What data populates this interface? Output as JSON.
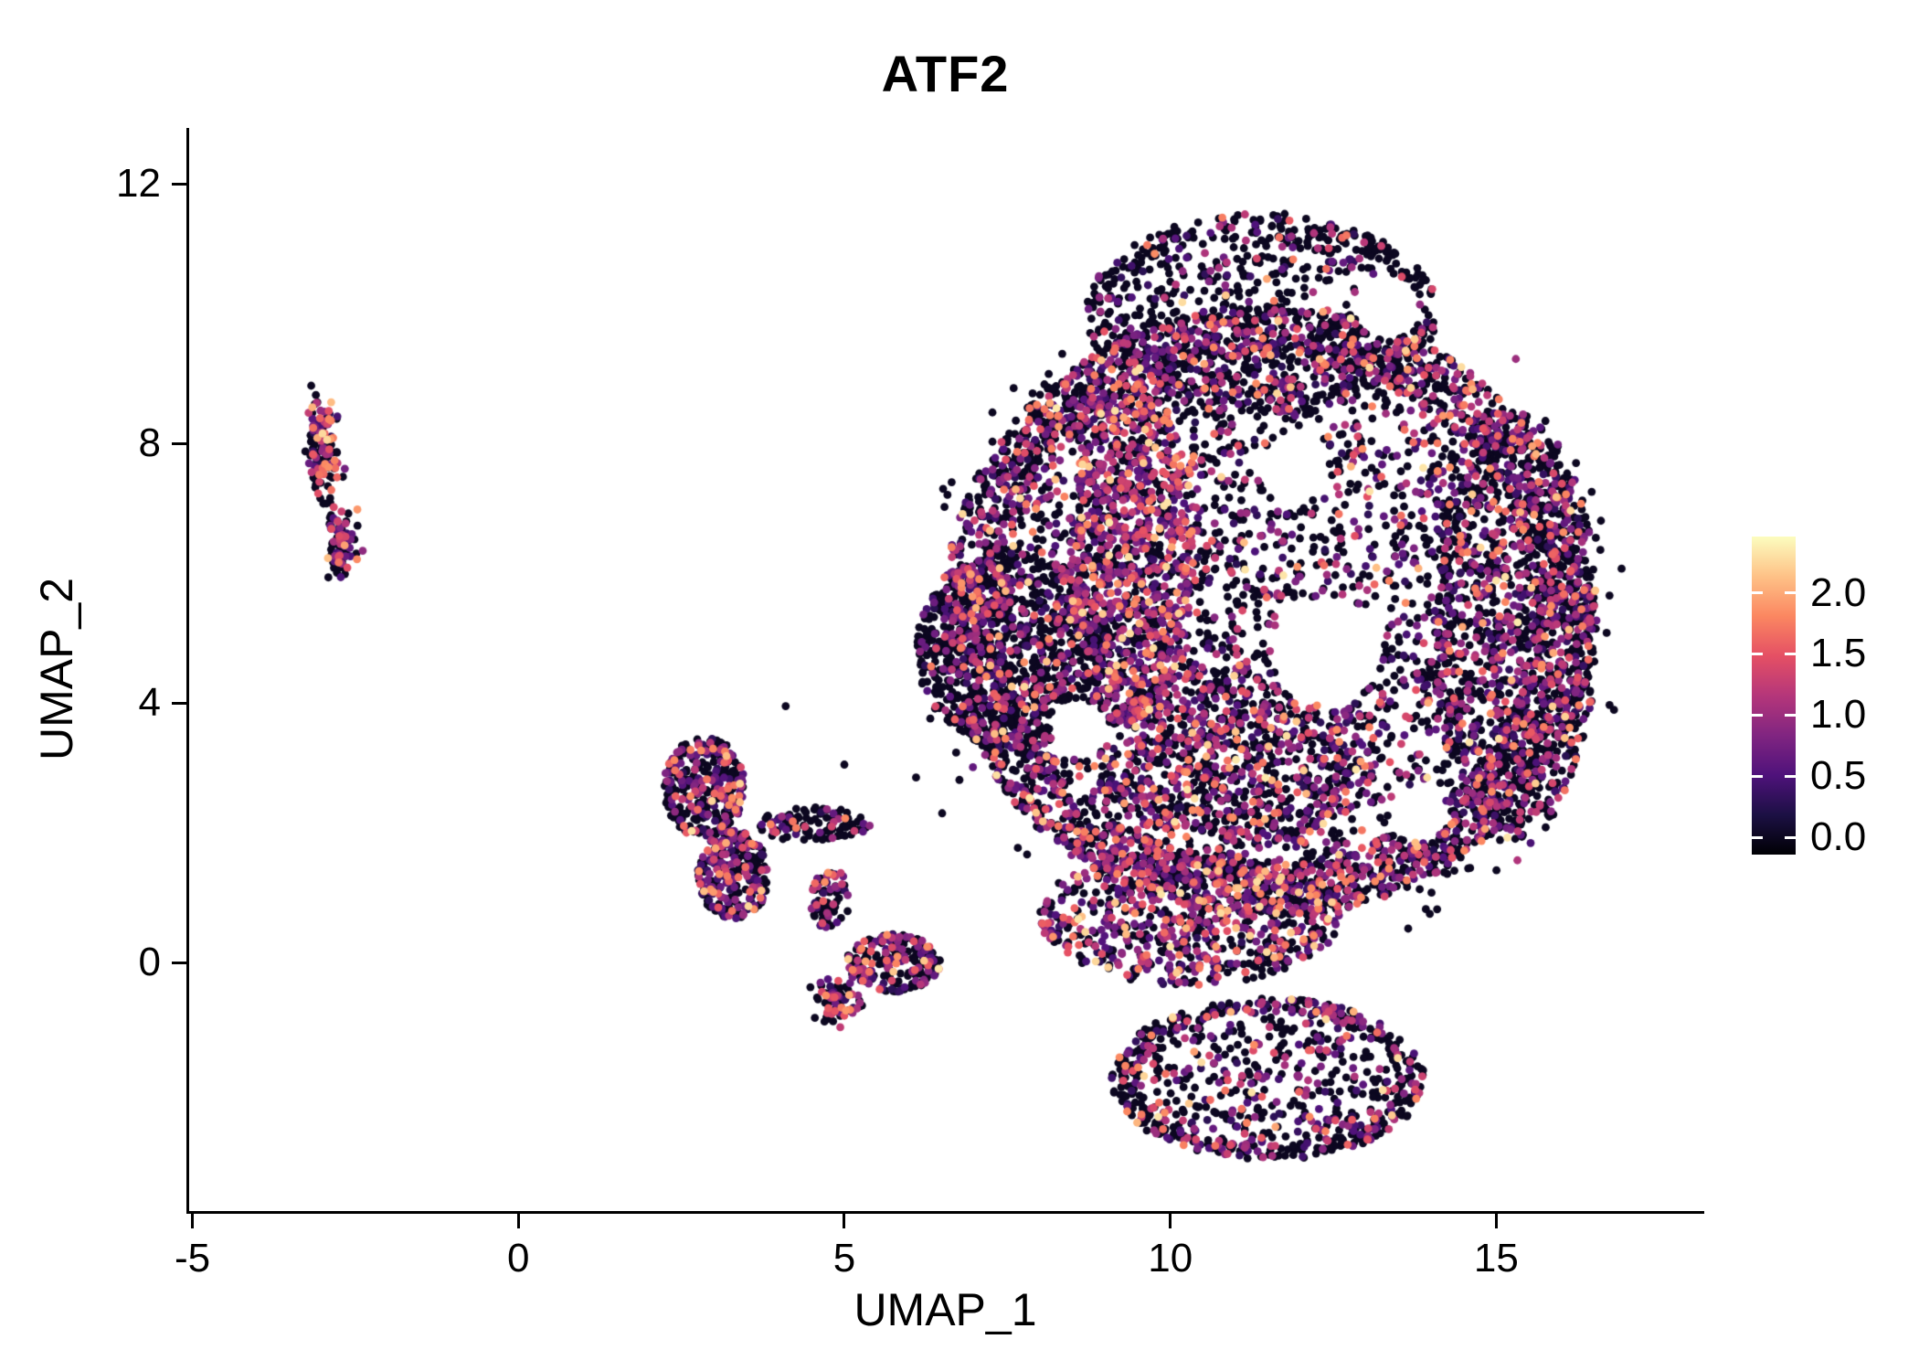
{
  "figure": {
    "background": "#FFFFFF",
    "axis_color": "#000000",
    "text_color": "#000000"
  },
  "chart_data": {
    "type": "scatter",
    "title": "ATF2",
    "xlabel": "UMAP_1",
    "ylabel": "UMAP_2",
    "xlim": [
      -5.05,
      18.19
    ],
    "ylim": [
      -3.83,
      12.86
    ],
    "xticks": [
      {
        "value": -5,
        "label": "-5"
      },
      {
        "value": 0,
        "label": "0"
      },
      {
        "value": 5,
        "label": "5"
      },
      {
        "value": 10,
        "label": "10"
      },
      {
        "value": 15,
        "label": "15"
      }
    ],
    "yticks": [
      {
        "value": 0,
        "label": "0"
      },
      {
        "value": 4,
        "label": "4"
      },
      {
        "value": 8,
        "label": "8"
      },
      {
        "value": 12,
        "label": "12"
      }
    ],
    "grid": false,
    "legend_position": "right",
    "point_radius_px": 4.4,
    "seed": 987123,
    "colorbar": {
      "colormap": "magma",
      "stops": [
        "#000004",
        "#1c1044",
        "#4f127b",
        "#812581",
        "#b5367a",
        "#e55064",
        "#fb8761",
        "#fec287",
        "#fcfdbf"
      ],
      "vmin": -0.14,
      "vmax": 2.46,
      "ticks": [
        {
          "value": 2.0,
          "label": "2.0"
        },
        {
          "value": 1.5,
          "label": "1.5"
        },
        {
          "value": 1.0,
          "label": "1.0"
        },
        {
          "value": 0.5,
          "label": "0.5"
        },
        {
          "value": 0.0,
          "label": "0.0"
        }
      ]
    },
    "expression_bins": {
      "low": [
        0.25,
        0.7
      ],
      "mid": [
        0.7,
        1.25
      ],
      "high": [
        1.25,
        1.85
      ],
      "vhigh": [
        1.85,
        2.35
      ]
    },
    "clusters": [
      {
        "name": "left-strip-top",
        "cx": -3.0,
        "cy": 7.9,
        "rx": 0.25,
        "ry": 0.8,
        "n": 140,
        "shape": "gauss",
        "edge": 0,
        "mix": {
          "zero": 0.5,
          "low": 0.13,
          "mid": 0.15,
          "high": 0.17,
          "vhigh": 0.05
        }
      },
      {
        "name": "left-strip-bottom",
        "cx": -2.72,
        "cy": 6.45,
        "rx": 0.22,
        "ry": 0.5,
        "n": 95,
        "shape": "gauss",
        "edge": 0,
        "mix": {
          "zero": 0.45,
          "low": 0.15,
          "mid": 0.2,
          "high": 0.15,
          "vhigh": 0.05
        }
      },
      {
        "name": "mid-cluster-upper",
        "cx": 2.85,
        "cy": 2.7,
        "rx": 0.62,
        "ry": 0.78,
        "n": 330,
        "shape": "ellipse",
        "edge": 0.2,
        "mix": {
          "zero": 0.62,
          "low": 0.14,
          "mid": 0.14,
          "high": 0.08,
          "vhigh": 0.02
        }
      },
      {
        "name": "mid-cluster-lower",
        "cx": 3.3,
        "cy": 1.35,
        "rx": 0.55,
        "ry": 0.68,
        "n": 270,
        "shape": "ellipse",
        "edge": 0.15,
        "mix": {
          "zero": 0.5,
          "low": 0.18,
          "mid": 0.18,
          "high": 0.11,
          "vhigh": 0.03
        }
      },
      {
        "name": "mid-cluster-arm",
        "cx": 4.55,
        "cy": 2.12,
        "rx": 0.85,
        "ry": 0.27,
        "n": 115,
        "shape": "ellipse",
        "edge": 0,
        "mix": {
          "zero": 0.75,
          "low": 0.1,
          "mid": 0.1,
          "high": 0.05,
          "vhigh": 0
        }
      },
      {
        "name": "mid-cluster-spur",
        "cx": 4.78,
        "cy": 1.0,
        "rx": 0.3,
        "ry": 0.5,
        "n": 70,
        "shape": "ellipse",
        "edge": 0,
        "mix": {
          "zero": 0.6,
          "low": 0.15,
          "mid": 0.15,
          "high": 0.08,
          "vhigh": 0.02
        }
      },
      {
        "name": "small-cluster-main",
        "cx": 5.75,
        "cy": 0.0,
        "rx": 0.72,
        "ry": 0.45,
        "n": 220,
        "shape": "ellipse",
        "edge": 0.15,
        "mix": {
          "zero": 0.55,
          "low": 0.15,
          "mid": 0.17,
          "high": 0.1,
          "vhigh": 0.03
        }
      },
      {
        "name": "small-cluster-tail",
        "cx": 4.88,
        "cy": -0.55,
        "rx": 0.35,
        "ry": 0.32,
        "n": 85,
        "shape": "gauss",
        "edge": 0,
        "mix": {
          "zero": 0.5,
          "low": 0.15,
          "mid": 0.2,
          "high": 0.12,
          "vhigh": 0.03
        }
      },
      {
        "name": "main-body",
        "cx": 11.5,
        "cy": 5.4,
        "rx": 5.0,
        "ry": 4.7,
        "n": 5300,
        "shape": "ellipse",
        "edge": 0.35,
        "mix": {
          "zero": 0.56,
          "low": 0.16,
          "mid": 0.17,
          "high": 0.09,
          "vhigh": 0.02
        }
      },
      {
        "name": "main-left-wedge",
        "cx": 7.6,
        "cy": 4.8,
        "rx": 1.5,
        "ry": 1.5,
        "n": 750,
        "shape": "ellipse",
        "edge": 0.1,
        "mix": {
          "zero": 0.78,
          "low": 0.09,
          "mid": 0.08,
          "high": 0.04,
          "vhigh": 0.01
        }
      },
      {
        "name": "main-colored-band",
        "cx": 9.4,
        "cy": 6.3,
        "rx": 0.95,
        "ry": 2.7,
        "n": 850,
        "shape": "ellipse",
        "edge": 0,
        "mix": {
          "zero": 0.3,
          "low": 0.2,
          "mid": 0.28,
          "high": 0.17,
          "vhigh": 0.05
        }
      },
      {
        "name": "main-top-dome",
        "cx": 11.4,
        "cy": 10.0,
        "rx": 2.7,
        "ry": 1.55,
        "n": 800,
        "shape": "ellipse",
        "edge": 0.2,
        "mix": {
          "zero": 0.72,
          "low": 0.11,
          "mid": 0.11,
          "high": 0.05,
          "vhigh": 0.01
        }
      },
      {
        "name": "main-right-edge",
        "cx": 15.3,
        "cy": 5.2,
        "rx": 1.25,
        "ry": 3.3,
        "n": 850,
        "shape": "ellipse",
        "edge": 0.25,
        "mix": {
          "zero": 0.6,
          "low": 0.14,
          "mid": 0.17,
          "high": 0.08,
          "vhigh": 0.01
        }
      },
      {
        "name": "main-bottom-band",
        "cx": 10.3,
        "cy": 0.7,
        "rx": 2.3,
        "ry": 1.05,
        "n": 700,
        "shape": "ellipse",
        "edge": 0,
        "mix": {
          "zero": 0.42,
          "low": 0.18,
          "mid": 0.22,
          "high": 0.14,
          "vhigh": 0.04
        }
      },
      {
        "name": "main-mid-colored",
        "cx": 11.0,
        "cy": 3.2,
        "rx": 2.2,
        "ry": 1.4,
        "n": 620,
        "shape": "ellipse",
        "edge": 0,
        "mix": {
          "zero": 0.45,
          "low": 0.18,
          "mid": 0.22,
          "high": 0.12,
          "vhigh": 0.03
        }
      },
      {
        "name": "bottom-lobe",
        "cx": 11.5,
        "cy": -1.8,
        "rx": 2.4,
        "ry": 1.25,
        "n": 820,
        "shape": "ellipse",
        "edge": 0.3,
        "mix": {
          "zero": 0.58,
          "low": 0.14,
          "mid": 0.16,
          "high": 0.09,
          "vhigh": 0.03
        }
      },
      {
        "name": "stray-fringe",
        "cx": 11.5,
        "cy": 5.2,
        "rx": 5.5,
        "ry": 5.2,
        "n": 160,
        "shape": "ellipse",
        "edge": 0.9,
        "mix": {
          "zero": 0.92,
          "low": 0.04,
          "mid": 0.03,
          "high": 0.01,
          "vhigh": 0
        }
      }
    ],
    "voids": [
      {
        "x": 12.4,
        "y": 4.8,
        "r": 0.85
      },
      {
        "x": 11.9,
        "y": 7.6,
        "r": 0.55
      },
      {
        "x": 13.3,
        "y": 10.1,
        "r": 0.5
      },
      {
        "x": 8.6,
        "y": 3.6,
        "r": 0.45
      },
      {
        "x": 13.8,
        "y": 2.3,
        "r": 0.45
      }
    ],
    "outliers": [
      {
        "x": 15.3,
        "y": 9.3,
        "v": 1.0
      },
      {
        "x": 4.1,
        "y": 3.95,
        "v": 0
      },
      {
        "x": 6.1,
        "y": 2.85,
        "v": 0
      },
      {
        "x": 6.5,
        "y": 2.3,
        "v": 0
      },
      {
        "x": 5.0,
        "y": 3.05,
        "v": 0
      }
    ]
  }
}
